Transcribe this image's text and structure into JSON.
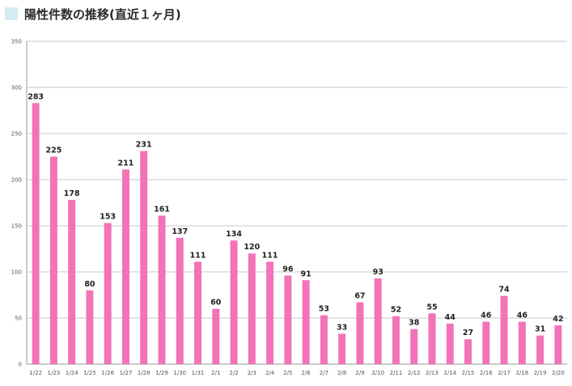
{
  "title": "陽性件数の推移(直近１ヶ月)",
  "colors": {
    "bar": "#f472b6",
    "grid": "#c8c8c8",
    "title_marker": "#d6ecf3"
  },
  "chart_data": {
    "type": "bar",
    "categories": [
      "1/22",
      "1/23",
      "1/24",
      "1/25",
      "1/26",
      "1/27",
      "1/28",
      "1/29",
      "1/30",
      "1/31",
      "2/1",
      "2/2",
      "2/3",
      "2/4",
      "2/5",
      "2/6",
      "2/7",
      "2/8",
      "2/9",
      "2/10",
      "2/11",
      "2/12",
      "2/13",
      "2/14",
      "2/15",
      "2/16",
      "2/17",
      "2/18",
      "2/19",
      "2/20"
    ],
    "values": [
      283,
      225,
      178,
      80,
      153,
      211,
      231,
      161,
      137,
      111,
      60,
      134,
      120,
      111,
      96,
      91,
      53,
      33,
      67,
      93,
      52,
      38,
      55,
      44,
      27,
      46,
      74,
      46,
      31,
      42
    ],
    "ylim": [
      0,
      350
    ],
    "yticks": [
      0,
      50,
      100,
      150,
      200,
      250,
      300,
      350
    ],
    "grid": true,
    "data_labels": true
  }
}
